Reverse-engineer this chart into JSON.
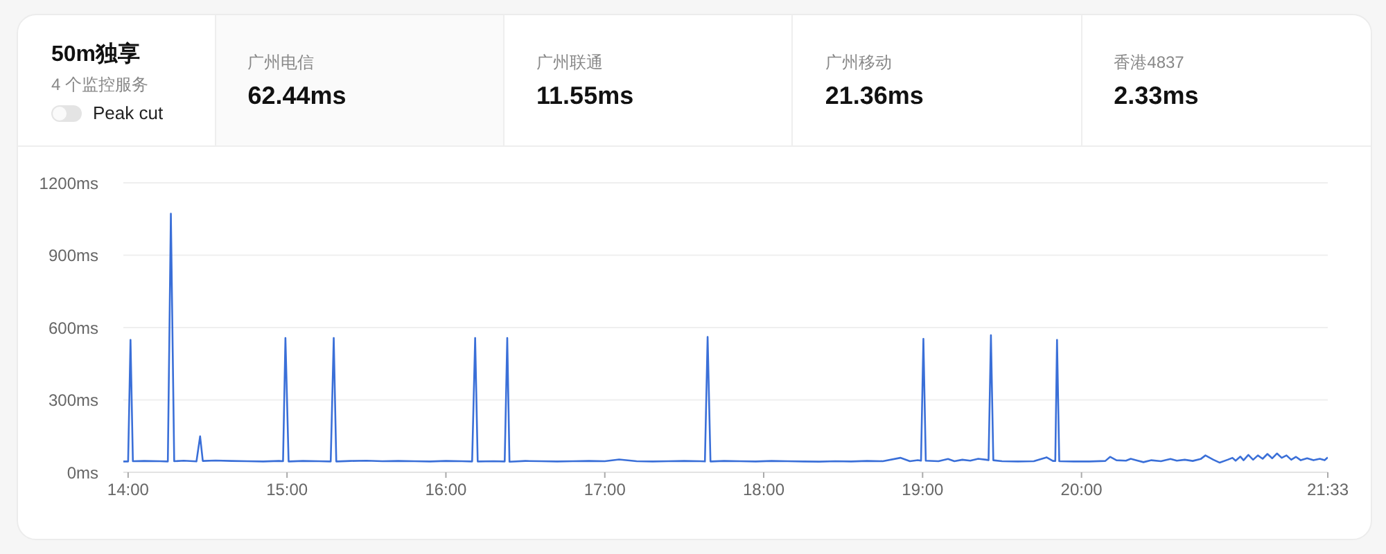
{
  "chart_data": [
    {
      "type": "other",
      "title": "50m独享",
      "subtitle": "4 个监控服务",
      "annotations": [
        "Peak cut"
      ],
      "categories": [
        "广州电信",
        "广州联通",
        "广州移动",
        "香港4837"
      ],
      "value_labels": [
        "62.44ms",
        "11.55ms",
        "21.36ms",
        "2.33ms"
      ]
    },
    {
      "type": "line",
      "color": "#3a6fd8",
      "marker": "none",
      "line_style": "solid",
      "grid": "y",
      "x": [
        13.97,
        14.0,
        14.015,
        14.03,
        14.1,
        14.2,
        14.25,
        14.269,
        14.29,
        14.35,
        14.43,
        14.453,
        14.47,
        14.55,
        14.65,
        14.75,
        14.85,
        14.95,
        14.975,
        14.99,
        15.01,
        15.1,
        15.2,
        15.275,
        15.294,
        15.31,
        15.4,
        15.5,
        15.6,
        15.7,
        15.8,
        15.9,
        16.0,
        16.1,
        16.165,
        16.184,
        16.2,
        16.3,
        16.37,
        16.386,
        16.4,
        16.5,
        16.6,
        16.7,
        16.8,
        16.9,
        17.0,
        17.09,
        17.2,
        17.3,
        17.4,
        17.5,
        17.6,
        17.63,
        17.647,
        17.665,
        17.75,
        17.85,
        17.95,
        18.05,
        18.15,
        18.25,
        18.35,
        18.45,
        18.55,
        18.65,
        18.75,
        18.86,
        18.92,
        18.97,
        18.99,
        19.005,
        19.02,
        19.1,
        19.16,
        19.2,
        19.25,
        19.3,
        19.35,
        19.4,
        19.415,
        19.43,
        19.445,
        19.5,
        19.6,
        19.7,
        19.78,
        19.82,
        19.835,
        19.846,
        19.86,
        19.95,
        20.05,
        20.15,
        20.18,
        20.22,
        20.28,
        20.31,
        20.35,
        20.39,
        20.44,
        20.5,
        20.56,
        20.6,
        20.65,
        20.7,
        20.75,
        20.78,
        20.83,
        20.87,
        20.92,
        20.95,
        20.97,
        21.0,
        21.02,
        21.05,
        21.08,
        21.11,
        21.14,
        21.17,
        21.2,
        21.23,
        21.26,
        21.29,
        21.32,
        21.35,
        21.38,
        21.42,
        21.46,
        21.5,
        21.53,
        21.55
      ],
      "values": [
        45,
        45,
        549,
        46,
        47,
        46,
        45,
        1072,
        46,
        48,
        45,
        149,
        47,
        49,
        47,
        46,
        45,
        47,
        46,
        557,
        45,
        47,
        46,
        45,
        557,
        45,
        47,
        48,
        46,
        47,
        46,
        45,
        47,
        46,
        45,
        557,
        45,
        46,
        45,
        557,
        44,
        47,
        46,
        45,
        46,
        47,
        46,
        53,
        46,
        45,
        46,
        47,
        46,
        45,
        561,
        45,
        47,
        46,
        45,
        47,
        46,
        45,
        44,
        46,
        45,
        47,
        46,
        60,
        46,
        50,
        48,
        553,
        48,
        46,
        55,
        46,
        52,
        48,
        56,
        52,
        50,
        568,
        50,
        46,
        45,
        46,
        62,
        47,
        47,
        549,
        46,
        45,
        45,
        47,
        64,
        50,
        48,
        56,
        49,
        42,
        50,
        46,
        55,
        48,
        52,
        47,
        55,
        70,
        52,
        40,
        52,
        60,
        48,
        65,
        50,
        72,
        52,
        70,
        56,
        76,
        58,
        78,
        60,
        70,
        52,
        64,
        50,
        58,
        50,
        56,
        50,
        62
      ],
      "xlim": [
        13.97,
        21.55
      ],
      "xticks": [
        {
          "value": 14,
          "label": "14:00"
        },
        {
          "value": 15,
          "label": "15:00"
        },
        {
          "value": 16,
          "label": "16:00"
        },
        {
          "value": 17,
          "label": "17:00"
        },
        {
          "value": 18,
          "label": "18:00"
        },
        {
          "value": 19,
          "label": "19:00"
        },
        {
          "value": 20,
          "label": "20:00"
        },
        {
          "value": 21.55,
          "label": "21:33"
        }
      ],
      "ylim": [
        0,
        1200
      ],
      "yticks": [
        {
          "value": 0,
          "label": "0ms"
        },
        {
          "value": 300,
          "label": "300ms"
        },
        {
          "value": 600,
          "label": "600ms"
        },
        {
          "value": 900,
          "label": "900ms"
        },
        {
          "value": 1200,
          "label": "1200ms"
        }
      ]
    }
  ]
}
